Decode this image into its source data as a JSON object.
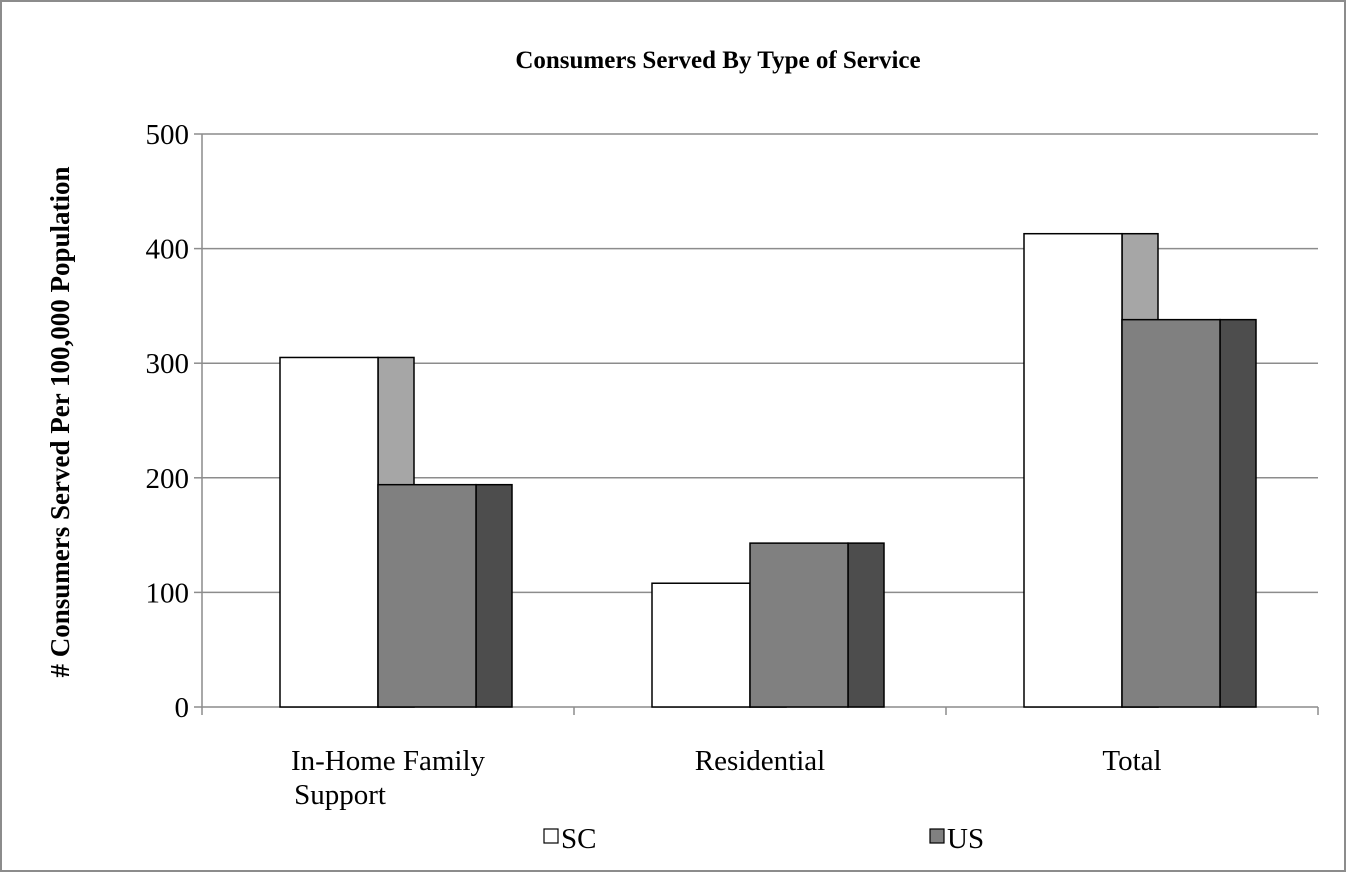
{
  "chart_data": {
    "type": "bar",
    "style": "3d-column",
    "title": "Consumers Served By Type of Service",
    "xlabel": "",
    "ylabel": "# Consumers Served Per 100,000 Population",
    "ylim": [
      0,
      500
    ],
    "yticks": [
      0,
      100,
      200,
      300,
      400,
      500
    ],
    "categories": [
      [
        "In-Home Family",
        "Support"
      ],
      [
        "Residential"
      ],
      [
        "Total"
      ]
    ],
    "series": [
      {
        "name": "SC",
        "values": [
          305,
          108,
          413
        ],
        "color": "#ffffff",
        "side_color": "#a6a6a6"
      },
      {
        "name": "US",
        "values": [
          194,
          143,
          338
        ],
        "color": "#808080",
        "side_color": "#4d4d4d"
      }
    ],
    "grid": true,
    "legend_position": "bottom"
  }
}
